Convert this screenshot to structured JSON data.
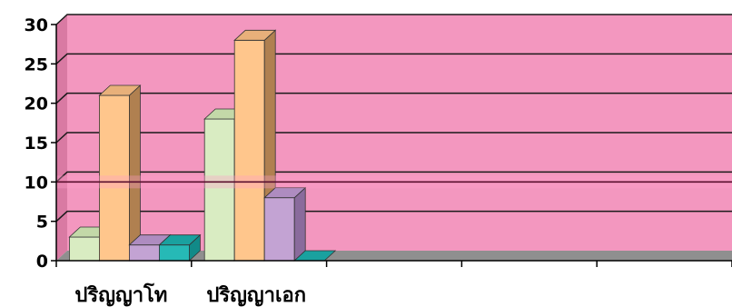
{
  "chart_data": {
    "type": "bar",
    "title": "",
    "xlabel": "",
    "ylabel": "",
    "categories": [
      "ปริญญาโท",
      "ปริญญาเอก",
      "",
      "",
      ""
    ],
    "series": [
      {
        "values": [
          3,
          18,
          0,
          0,
          0
        ],
        "color": "#d9ecc2",
        "side_color": "#a6be8c",
        "top_color": "#c3d8a8"
      },
      {
        "values": [
          21,
          28,
          0,
          0,
          0
        ],
        "color": "#ffc68c",
        "side_color": "#b08050",
        "top_color": "#e8b07a"
      },
      {
        "values": [
          2,
          8,
          0,
          0,
          0
        ],
        "color": "#c3a3d3",
        "side_color": "#8a6b9c",
        "top_color": "#ae8cc0"
      },
      {
        "values": [
          2,
          0,
          0,
          0,
          0
        ],
        "color": "#26b9b6",
        "side_color": "#118a88",
        "top_color": "#1aa19f"
      }
    ],
    "ylim": [
      0,
      30
    ],
    "yticks": [
      0,
      5,
      10,
      15,
      20,
      25,
      30
    ],
    "grid": true,
    "colors": {
      "wall": "#f397bf",
      "wall_highlight": "#f6b0cf",
      "floor": "#8f8f8f",
      "gridline": "#1a1a1a",
      "axis": "#000000"
    }
  }
}
